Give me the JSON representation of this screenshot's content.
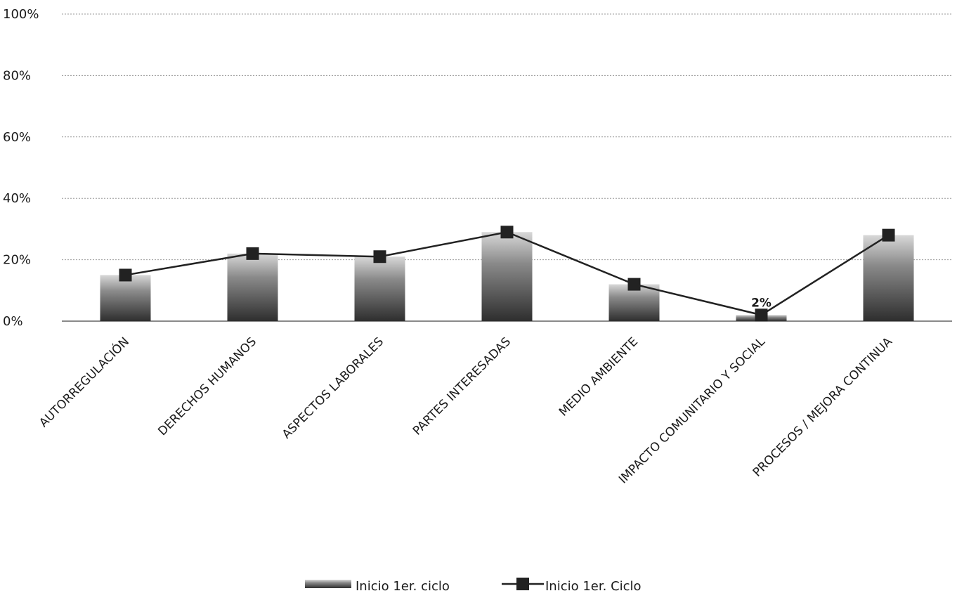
{
  "chart_data": {
    "type": "bar",
    "title": "",
    "xlabel": "",
    "ylabel": "",
    "ylim": [
      0,
      100
    ],
    "yticks": [
      "0%",
      "20%",
      "40%",
      "60%",
      "80%",
      "100%"
    ],
    "grid": true,
    "legend_position": "bottom",
    "categories": [
      "AUTORREGULACIÓN",
      "DERECHOS HUMANOS",
      "ASPECTOS LABORALES",
      "PARTES INTERESADAS",
      "MEDIO AMBIENTE",
      "IMPACTO COMUNITARIO Y SOCIAL",
      "PROCESOS / MEJORA CONTINUA"
    ],
    "series": [
      {
        "name": "Inicio 1er. ciclo",
        "kind": "bar",
        "color": "#555555",
        "values": [
          15,
          22,
          21,
          29,
          12,
          2,
          28
        ]
      },
      {
        "name": "Inicio 1er. Ciclo",
        "kind": "line",
        "color": "#222222",
        "marker": "square",
        "values": [
          15,
          22,
          21,
          29,
          12,
          2,
          28
        ]
      }
    ],
    "data_labels": [
      {
        "category_index": 5,
        "text": "2%"
      }
    ]
  }
}
